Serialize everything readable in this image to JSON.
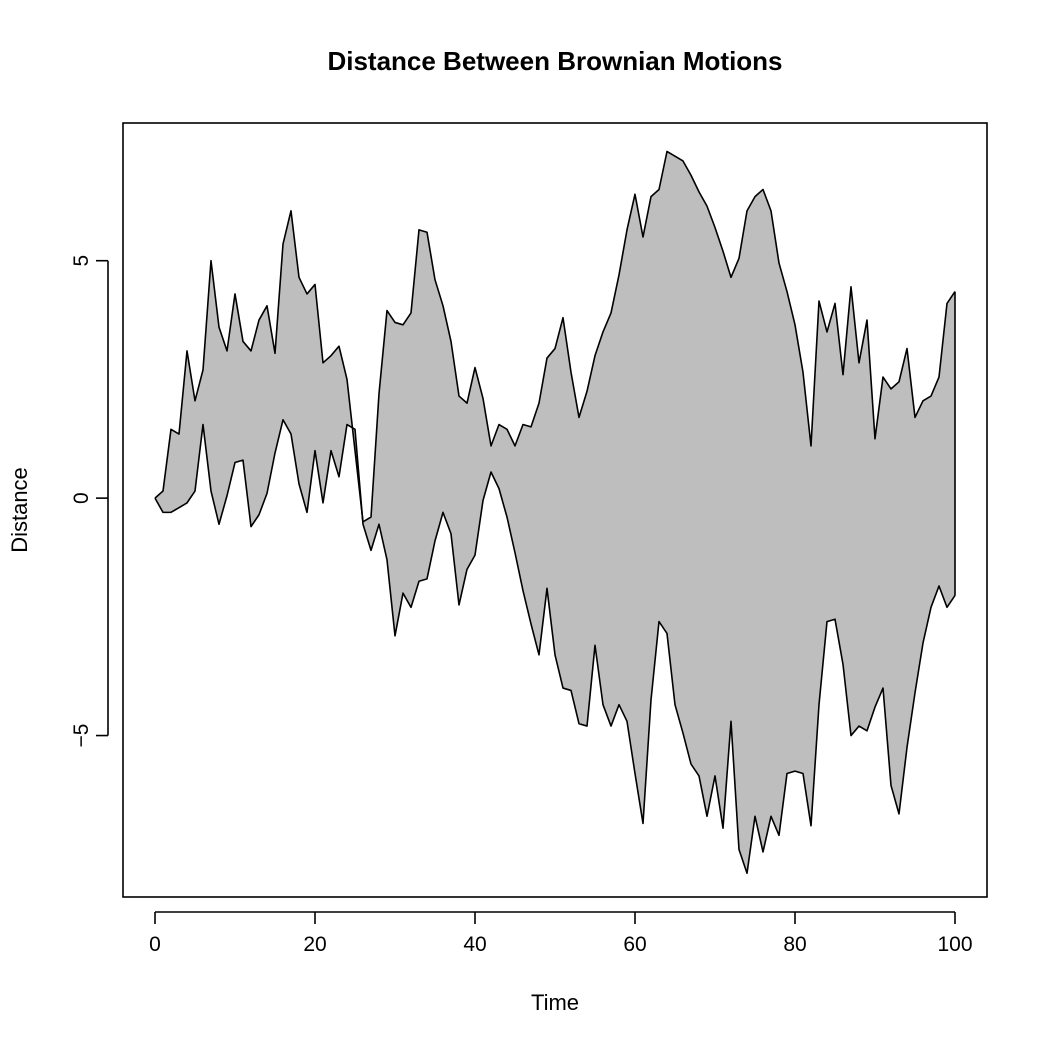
{
  "chart_data": {
    "type": "area",
    "title": "Distance Between Brownian Motions",
    "xlabel": "Time",
    "ylabel": "Distance",
    "xlim": [
      -4,
      104
    ],
    "ylim": [
      -8.4,
      7.9
    ],
    "xticks": [
      0,
      20,
      40,
      60,
      80,
      100
    ],
    "xtick_labels": [
      "0",
      "20",
      "40",
      "60",
      "80",
      "100"
    ],
    "yticks": [
      -5,
      0,
      5
    ],
    "ytick_labels": [
      "−5",
      "0",
      "5"
    ],
    "fill_color": "#bebebe",
    "line_color": "#000000",
    "grid": false,
    "legend": "none",
    "x": [
      0,
      1,
      2,
      3,
      4,
      5,
      6,
      7,
      8,
      9,
      10,
      11,
      12,
      13,
      14,
      15,
      16,
      17,
      18,
      19,
      20,
      21,
      22,
      23,
      24,
      25,
      26,
      27,
      28,
      29,
      30,
      31,
      32,
      33,
      34,
      35,
      36,
      37,
      38,
      39,
      40,
      41,
      42,
      43,
      44,
      45,
      46,
      47,
      48,
      49,
      50,
      51,
      52,
      53,
      54,
      55,
      56,
      57,
      58,
      59,
      60,
      61,
      62,
      63,
      64,
      65,
      66,
      67,
      68,
      69,
      70,
      71,
      72,
      73,
      74,
      75,
      76,
      77,
      78,
      79,
      80,
      81,
      82,
      83,
      84,
      85,
      86,
      87,
      88,
      89,
      90,
      91,
      92,
      93,
      94,
      95,
      96,
      97,
      98,
      99,
      100
    ],
    "series": [
      {
        "values": [
          0,
          0.15,
          1.45,
          1.35,
          3.1,
          2.05,
          2.7,
          5.0,
          3.6,
          3.1,
          4.3,
          3.3,
          3.1,
          3.75,
          4.05,
          3.05,
          5.35,
          6.05,
          4.65,
          4.3,
          4.5,
          2.85,
          3.0,
          3.2,
          2.5,
          1.0,
          -0.5,
          -0.4,
          2.2,
          3.95,
          3.7,
          3.65,
          3.9,
          5.65,
          5.6,
          4.6,
          4.05,
          3.3,
          2.15,
          2.0,
          2.75,
          2.1,
          1.1,
          1.55,
          1.45,
          1.1,
          1.55,
          1.5,
          2.0,
          2.95,
          3.15,
          3.8,
          2.65,
          1.7,
          2.25,
          3.0,
          3.5,
          3.9,
          4.7,
          5.65,
          6.4,
          5.5,
          6.35,
          6.5,
          7.3,
          7.2,
          7.1,
          6.8,
          6.45,
          6.15,
          5.7,
          5.2,
          4.65,
          5.05,
          6.05,
          6.35,
          6.5,
          6.05,
          4.95,
          4.35,
          3.65,
          2.65,
          1.1,
          4.15,
          3.5,
          4.1,
          2.6,
          4.45,
          2.85,
          3.75,
          1.25,
          2.55,
          2.3,
          2.45,
          3.15,
          1.7,
          2.05,
          2.15,
          2.55,
          4.1,
          4.35
        ]
      },
      {
        "values": [
          0,
          -0.3,
          -0.3,
          -0.2,
          -0.1,
          0.15,
          1.55,
          0.15,
          -0.55,
          0.05,
          0.75,
          0.8,
          -0.6,
          -0.35,
          0.1,
          0.95,
          1.65,
          1.35,
          0.3,
          -0.3,
          1.0,
          -0.1,
          1.0,
          0.45,
          1.55,
          1.45,
          -0.55,
          -1.1,
          -0.55,
          -1.3,
          -2.9,
          -2.0,
          -2.3,
          -1.75,
          -1.7,
          -0.9,
          -0.3,
          -0.75,
          -2.25,
          -1.5,
          -1.2,
          -0.05,
          0.55,
          0.2,
          -0.4,
          -1.15,
          -1.95,
          -2.65,
          -3.3,
          -1.9,
          -3.3,
          -4.0,
          -4.05,
          -4.75,
          -4.8,
          -3.1,
          -4.35,
          -4.8,
          -4.35,
          -4.7,
          -5.8,
          -6.85,
          -4.25,
          -2.6,
          -2.85,
          -4.35,
          -4.95,
          -5.6,
          -5.85,
          -6.7,
          -5.85,
          -6.95,
          -4.7,
          -7.4,
          -7.9,
          -6.7,
          -7.45,
          -6.7,
          -7.1,
          -5.8,
          -5.75,
          -5.8,
          -6.9,
          -4.35,
          -2.6,
          -2.55,
          -3.5,
          -5.0,
          -4.8,
          -4.9,
          -4.4,
          -4.0,
          -6.05,
          -6.65,
          -5.25,
          -4.1,
          -3.05,
          -2.3,
          -1.85,
          -2.3,
          -2.05
        ]
      }
    ]
  }
}
